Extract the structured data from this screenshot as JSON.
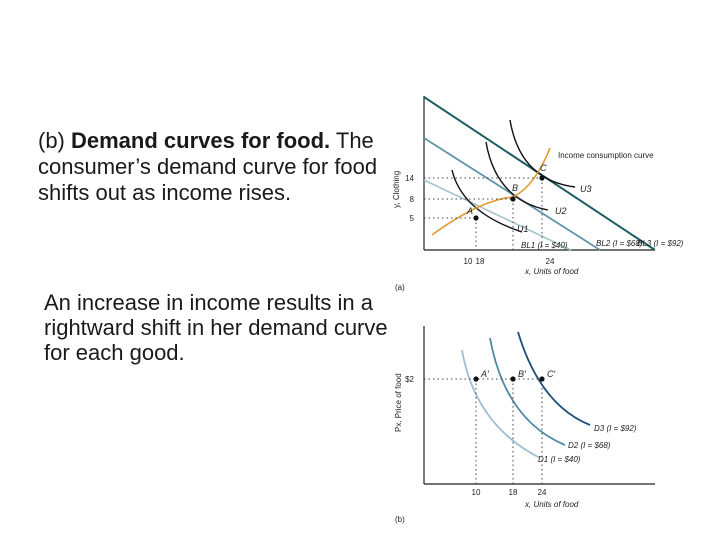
{
  "text": {
    "heading_prefix": "(b) ",
    "heading_bold": "Demand curves for food.",
    "heading_rest": "The consumer’s demand curve for food shifts out as income rises.",
    "paragraph2": "An increase in income results in a rightward shift in her demand curve for each good."
  },
  "panel_a": {
    "ylabel": "y, Clothing",
    "yticks": [
      "14",
      "8",
      "5"
    ],
    "xticks": [
      "10",
      "18",
      "24"
    ],
    "xlabel": "x, Units of food",
    "tag": "(a)",
    "income_consumption_label": "Income consumption curve",
    "points": [
      "A",
      "B",
      "C"
    ],
    "indifference_labels": [
      "U1",
      "U2",
      "U3"
    ],
    "budget_labels": [
      "BL1 (I = $40)",
      "BL2 (I = $68)",
      "BL3 (I = $92)"
    ]
  },
  "panel_b": {
    "ylabel": "Px, Price of food",
    "ytick": "$2",
    "xticks": [
      "10",
      "18",
      "24"
    ],
    "xlabel": "x, Units of food",
    "tag": "(b)",
    "points": [
      "A′",
      "B′",
      "C′"
    ],
    "demand_labels": [
      "D3 (I = $92)",
      "D2 (I = $68)",
      "D1 (I = $40)"
    ]
  },
  "colors": {
    "bl1": "#a6c3cf",
    "bl2": "#5f93a8",
    "bl3": "#1f5f63",
    "icc": "#e09a2a",
    "d1": "#9dbfd0",
    "d2": "#4d8aa3",
    "d3": "#1d4f78"
  }
}
